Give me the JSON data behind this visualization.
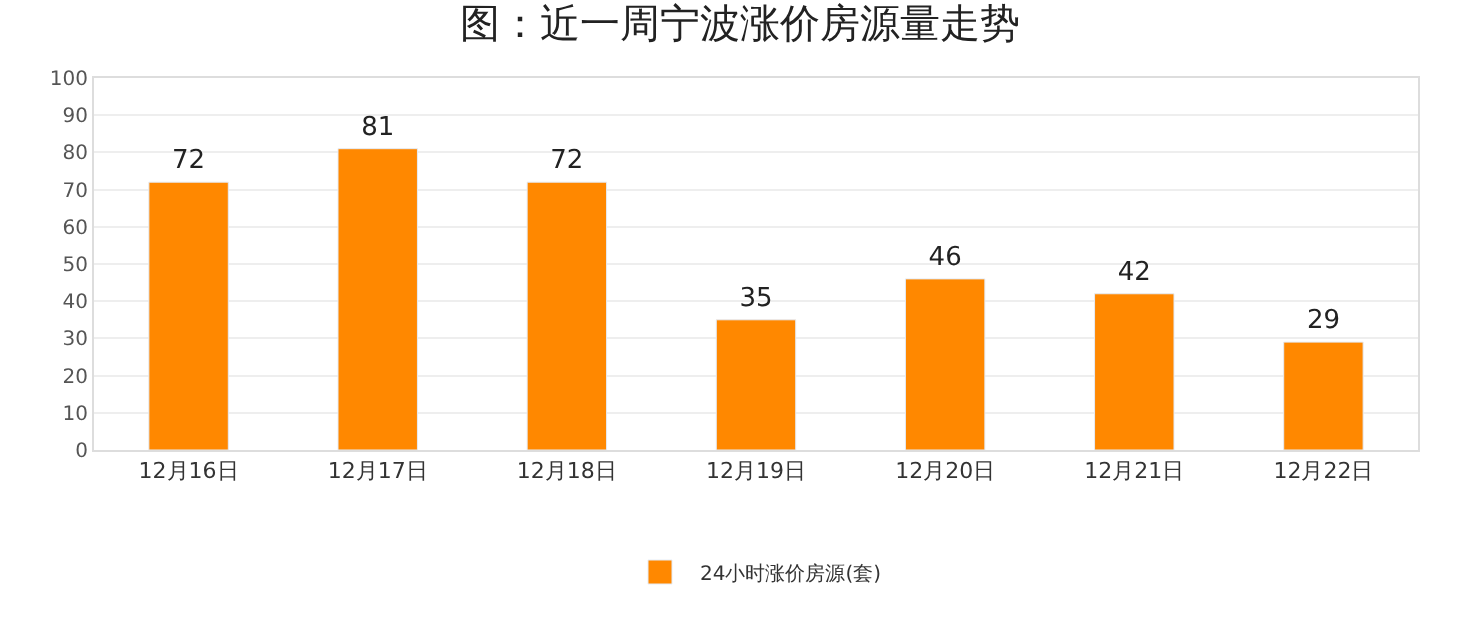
{
  "chart_data": {
    "type": "bar",
    "title": "图：近一周宁波涨价房源量走势",
    "categories": [
      "12月16日",
      "12月17日",
      "12月18日",
      "12月19日",
      "12月20日",
      "12月21日",
      "12月22日"
    ],
    "series": [
      {
        "name": "24小时涨价房源(套)",
        "color": "#ff8800",
        "values": [
          72,
          81,
          72,
          35,
          46,
          42,
          29
        ]
      }
    ],
    "ylim": [
      0,
      100
    ],
    "yticks": [
      0,
      10,
      20,
      30,
      40,
      50,
      60,
      70,
      80,
      90,
      100
    ],
    "grid": "y",
    "legend": "bottom",
    "data_labels": true
  }
}
